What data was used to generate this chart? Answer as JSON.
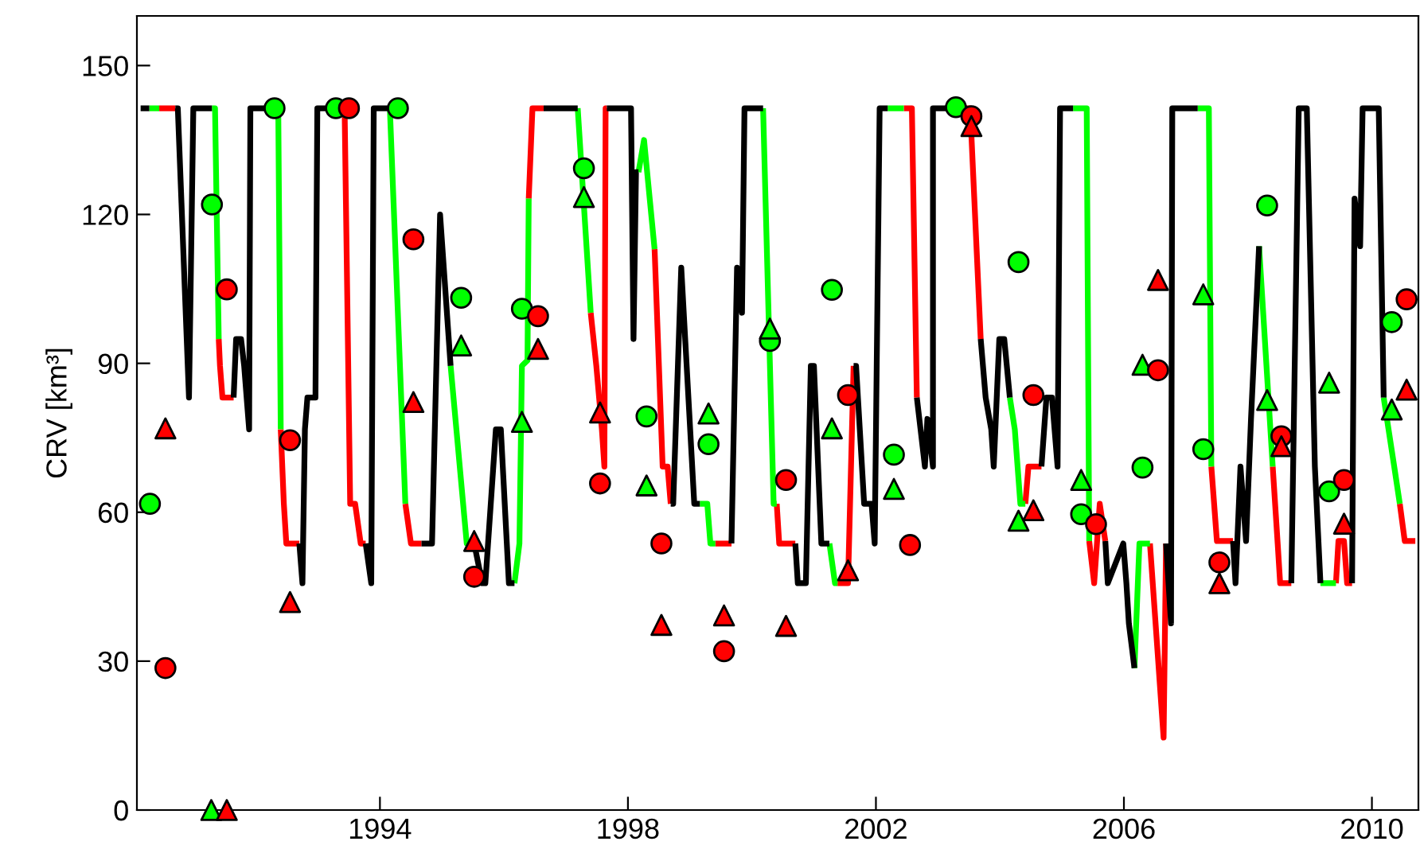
{
  "chart_data": {
    "type": "line",
    "ylabel": "CRV [km³]",
    "xlim": [
      1990.08,
      2010.75
    ],
    "ylim": [
      0,
      160
    ],
    "xticks": [
      1994,
      1998,
      2002,
      2006,
      2010
    ],
    "yticks": [
      0,
      30,
      60,
      90,
      120,
      150
    ],
    "line_style": "solid",
    "series": [
      {
        "color": "#000000",
        "x": [
          1990.14,
          1990.28,
          null,
          1990.7,
          1990.74,
          1990.92,
          1990.99,
          1991.29,
          null,
          1991.64,
          1991.68,
          1991.76,
          1991.81,
          1991.89,
          1991.91,
          1992.36,
          null,
          1992.7,
          1992.75,
          1992.79,
          1992.83,
          1992.96,
          1992.99,
          1993.39,
          null,
          1993.77,
          1993.86,
          1993.9,
          1994.16,
          null,
          1994.67,
          1994.84,
          1994.97,
          1995.14,
          null,
          1995.52,
          1995.65,
          1995.7,
          1995.87,
          1995.95,
          1996.08,
          1996.17,
          null,
          1996.64,
          1997.19,
          null,
          1997.66,
          1998.05,
          1998.09,
          1998.13,
          1998.17,
          null,
          1998.69,
          1998.73,
          1998.86,
          1999.07,
          1999.16,
          null,
          1999.67,
          1999.76,
          1999.84,
          1999.88,
          2000.18,
          null,
          2000.7,
          2000.74,
          2000.87,
          2000.95,
          2001.0,
          2001.12,
          2001.25,
          null,
          2001.64,
          2001.68,
          2001.81,
          2001.93,
          2001.98,
          2002.06,
          2002.19,
          null,
          2002.66,
          2002.79,
          2002.83,
          2002.92,
          2002.92,
          2003.47,
          null,
          2003.69,
          2003.77,
          2003.86,
          2003.9,
          2003.99,
          2004.07,
          2004.16,
          null,
          2004.67,
          2004.75,
          2004.84,
          2004.93,
          2004.97,
          2005.18,
          null,
          2005.7,
          2005.74,
          2005.99,
          2006.04,
          2006.08,
          2006.17,
          null,
          2006.68,
          2006.76,
          2006.78,
          2007.19,
          null,
          2007.76,
          2007.8,
          2007.88,
          2007.97,
          2008.05,
          2008.18,
          null,
          2008.7,
          2008.82,
          2008.95,
          2009.08,
          2009.17,
          null,
          2009.68,
          2009.72,
          2009.81,
          2009.85,
          2010.11,
          2010.19
        ],
        "values": [
          141.4,
          141.4,
          null,
          141.4,
          141.4,
          83.1,
          141.4,
          141.4,
          null,
          83.1,
          94.9,
          94.9,
          89.5,
          76.7,
          141.4,
          141.4,
          null,
          53.7,
          45.7,
          76.7,
          83.1,
          83.1,
          141.4,
          141.4,
          null,
          53.7,
          45.7,
          141.4,
          141.4,
          null,
          53.7,
          53.7,
          120.0,
          89.5,
          null,
          53.7,
          45.7,
          45.7,
          76.7,
          76.7,
          45.7,
          45.7,
          null,
          141.4,
          141.4,
          null,
          141.4,
          141.4,
          94.9,
          128.5,
          128.5,
          null,
          61.7,
          61.7,
          109.3,
          61.7,
          61.7,
          null,
          53.7,
          109.3,
          100.2,
          141.4,
          141.4,
          null,
          53.7,
          45.7,
          45.7,
          89.5,
          89.5,
          53.7,
          53.7,
          null,
          89.5,
          89.5,
          61.7,
          61.7,
          53.7,
          141.4,
          141.4,
          null,
          83.1,
          69.2,
          78.8,
          69.2,
          141.4,
          141.4,
          null,
          94.9,
          83.1,
          76.7,
          69.2,
          94.9,
          94.9,
          83.1,
          null,
          69.2,
          83.1,
          83.1,
          69.2,
          141.4,
          141.4,
          null,
          54.2,
          45.7,
          53.7,
          45.7,
          37.6,
          28.6,
          null,
          53.7,
          37.6,
          141.4,
          141.4,
          null,
          54.2,
          45.7,
          69.2,
          54.2,
          78.8,
          113.6,
          null,
          45.7,
          141.4,
          141.4,
          69.2,
          45.7,
          null,
          45.7,
          123.2,
          113.6,
          141.4,
          141.4,
          83.1
        ]
      },
      {
        "color": "#00ff00",
        "x": [
          1990.28,
          1990.44,
          null,
          1991.29,
          1991.34,
          1991.4,
          null,
          1992.36,
          1992.4,
          null,
          1994.16,
          1994.41,
          null,
          1995.14,
          1995.4,
          1995.52,
          null,
          1996.17,
          1996.25,
          1996.29,
          1996.38,
          1996.4,
          null,
          1997.19,
          1997.4,
          null,
          1998.17,
          1998.26,
          1998.43,
          null,
          1999.16,
          1999.28,
          1999.33,
          1999.41,
          null,
          2000.18,
          2000.35,
          2000.4,
          null,
          2001.25,
          2001.34,
          2001.38,
          null,
          2002.19,
          2002.45,
          null,
          2004.16,
          2004.24,
          2004.33,
          2004.41,
          null,
          2005.18,
          2005.4,
          2005.44,
          null,
          2006.17,
          2006.25,
          2006.42,
          null,
          2007.19,
          2007.37,
          2007.41,
          null,
          2008.18,
          2008.4,
          null,
          2009.17,
          2009.42,
          null,
          2010.19,
          2010.36,
          2010.45
        ],
        "values": [
          141.4,
          141.4,
          null,
          141.4,
          141.4,
          94.9,
          null,
          141.4,
          76.7,
          null,
          141.4,
          61.7,
          null,
          89.5,
          53.7,
          53.7,
          null,
          45.7,
          53.7,
          89.5,
          90.6,
          123.2,
          null,
          141.4,
          100.2,
          null,
          128.5,
          135.0,
          113.0,
          null,
          61.7,
          61.7,
          53.7,
          53.7,
          null,
          141.4,
          61.7,
          61.7,
          null,
          53.7,
          45.7,
          45.7,
          null,
          141.4,
          141.4,
          null,
          83.1,
          76.7,
          61.7,
          61.7,
          null,
          141.4,
          141.4,
          54.2,
          null,
          28.6,
          53.7,
          53.7,
          null,
          141.4,
          141.4,
          69.2,
          null,
          113.6,
          69.2,
          null,
          45.7,
          45.7,
          null,
          83.1,
          69.2,
          61.7
        ]
      },
      {
        "color": "#ff0000",
        "x": [
          1990.44,
          1990.7,
          null,
          1991.4,
          1991.42,
          1991.46,
          1991.64,
          null,
          1992.4,
          1992.45,
          1992.49,
          1992.7,
          null,
          1993.39,
          1993.43,
          1993.52,
          1993.6,
          1993.69,
          1993.77,
          null,
          1994.41,
          1994.5,
          1994.67,
          null,
          1996.4,
          1996.46,
          1996.64,
          null,
          1997.4,
          1997.49,
          1997.58,
          1997.62,
          1997.64,
          1997.66,
          null,
          1998.43,
          1998.56,
          1998.64,
          1998.69,
          null,
          1999.41,
          1999.67,
          null,
          2000.4,
          2000.44,
          2000.7,
          null,
          2001.38,
          2001.55,
          2001.64,
          null,
          2002.45,
          2002.58,
          2002.66,
          null,
          2003.47,
          2003.52,
          2003.69,
          null,
          2004.41,
          2004.46,
          2004.67,
          null,
          2005.44,
          2005.52,
          2005.61,
          2005.7,
          null,
          2006.42,
          2006.64,
          2006.68,
          null,
          2007.41,
          2007.5,
          2007.76,
          null,
          2008.4,
          2008.48,
          2008.52,
          2008.7,
          null,
          2009.42,
          2009.46,
          2009.55,
          2009.6,
          2009.68,
          null,
          2010.45,
          2010.53,
          2010.7
        ],
        "values": [
          141.4,
          141.4,
          null,
          94.9,
          89.5,
          83.1,
          83.1,
          null,
          76.7,
          61.7,
          53.7,
          53.7,
          null,
          141.4,
          141.4,
          61.7,
          61.7,
          53.7,
          53.7,
          null,
          61.7,
          53.7,
          53.7,
          null,
          123.2,
          141.4,
          141.4,
          null,
          100.2,
          89.5,
          76.7,
          69.2,
          141.4,
          141.4,
          null,
          113.0,
          69.2,
          69.2,
          61.7,
          null,
          53.7,
          53.7,
          null,
          61.7,
          53.7,
          53.7,
          null,
          45.7,
          45.7,
          89.5,
          null,
          141.4,
          141.4,
          83.1,
          null,
          141.4,
          141.4,
          94.9,
          null,
          61.7,
          69.2,
          69.2,
          null,
          54.2,
          45.7,
          61.7,
          54.2,
          null,
          53.7,
          14.6,
          53.7,
          null,
          69.2,
          54.2,
          54.2,
          null,
          69.2,
          53.7,
          45.7,
          45.7,
          null,
          45.7,
          54.2,
          54.2,
          45.7,
          45.7,
          null,
          61.7,
          54.2,
          54.2
        ]
      },
      {
        "type": "scatter",
        "marker": "circle",
        "color": "#00ff00",
        "x": [
          1990.29,
          1991.29,
          1992.3,
          1993.29,
          1994.29,
          1995.31,
          1996.29,
          1997.29,
          1998.3,
          1999.3,
          2000.29,
          2001.29,
          2002.29,
          2003.29,
          2004.3,
          2005.31,
          2006.3,
          2007.28,
          2008.31,
          2009.31,
          2010.32
        ],
        "values": [
          61.7,
          122.0,
          141.4,
          141.4,
          141.4,
          103.2,
          101.0,
          129.3,
          79.3,
          73.7,
          94.5,
          104.8,
          71.6,
          141.6,
          110.4,
          59.6,
          69.0,
          72.7,
          121.8,
          64.2,
          98.3
        ]
      },
      {
        "type": "scatter",
        "marker": "triangle",
        "color": "#00ff00",
        "x": [
          1991.28,
          1995.31,
          1996.29,
          1997.29,
          1998.3,
          1999.3,
          2000.29,
          2001.29,
          2002.29,
          2004.3,
          2005.31,
          2006.3,
          2007.28,
          2008.31,
          2009.31,
          2010.32
        ],
        "values": [
          0,
          93.6,
          78.2,
          123.5,
          65.4,
          79.9,
          97.0,
          76.9,
          64.7,
          58.3,
          66.5,
          89.7,
          103.9,
          82.6,
          86.1,
          80.7
        ]
      },
      {
        "type": "scatter",
        "marker": "circle",
        "color": "#ff0000",
        "x": [
          1990.54,
          1991.53,
          1992.55,
          1993.5,
          1994.54,
          1995.52,
          1996.55,
          1997.55,
          1998.54,
          1999.55,
          2000.55,
          2001.55,
          2002.55,
          2003.54,
          2004.54,
          2005.55,
          2006.55,
          2007.54,
          2008.54,
          2009.55,
          2010.56
        ],
        "values": [
          28.6,
          104.9,
          74.5,
          141.4,
          115.0,
          47.0,
          99.5,
          65.8,
          53.7,
          32.0,
          66.5,
          83.6,
          53.4,
          139.8,
          83.6,
          57.6,
          88.6,
          49.9,
          75.3,
          66.5,
          102.9
        ]
      },
      {
        "type": "scatter",
        "marker": "triangle",
        "color": "#ff0000",
        "x": [
          1990.54,
          1991.53,
          1992.55,
          1994.54,
          1995.52,
          1996.55,
          1997.55,
          1998.54,
          1999.55,
          2000.55,
          2001.55,
          2003.54,
          2004.54,
          2006.55,
          2007.54,
          2008.54,
          2009.55,
          2010.56
        ],
        "values": [
          76.9,
          0,
          41.9,
          82.2,
          54.2,
          92.9,
          80.1,
          37.3,
          39.2,
          37.1,
          48.3,
          137.8,
          60.4,
          106.8,
          45.7,
          73.3,
          57.7,
          84.7
        ]
      }
    ]
  }
}
